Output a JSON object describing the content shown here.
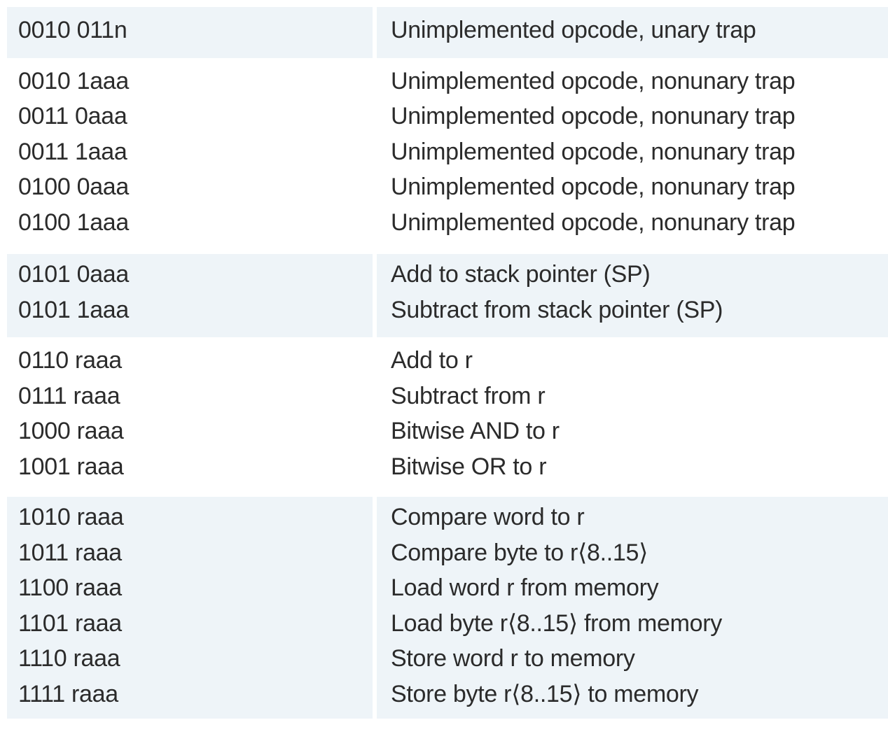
{
  "groups": [
    {
      "shaded": true,
      "rows": [
        {
          "code": "0010 011n",
          "desc": "Unimplemented opcode, unary trap"
        }
      ]
    },
    {
      "shaded": false,
      "rows": [
        {
          "code": "0010 1aaa",
          "desc": "Unimplemented opcode, nonunary trap"
        },
        {
          "code": "0011 0aaa",
          "desc": "Unimplemented opcode, nonunary trap"
        },
        {
          "code": "0011 1aaa",
          "desc": "Unimplemented opcode, nonunary trap"
        },
        {
          "code": "0100 0aaa",
          "desc": "Unimplemented opcode, nonunary trap"
        },
        {
          "code": "0100 1aaa",
          "desc": "Unimplemented opcode, nonunary trap"
        }
      ]
    },
    {
      "shaded": true,
      "rows": [
        {
          "code": "0101 0aaa",
          "desc": "Add to stack pointer (SP)"
        },
        {
          "code": "0101 1aaa",
          "desc": "Subtract from stack pointer (SP)"
        }
      ]
    },
    {
      "shaded": false,
      "rows": [
        {
          "code": "0110 raaa",
          "desc": "Add to r"
        },
        {
          "code": "0111 raaa",
          "desc": "Subtract from r"
        },
        {
          "code": "1000 raaa",
          "desc": "Bitwise AND to r"
        },
        {
          "code": "1001 raaa",
          "desc": "Bitwise OR to r"
        }
      ]
    },
    {
      "shaded": true,
      "rows": [
        {
          "code": "1010 raaa",
          "desc": "Compare word to r"
        },
        {
          "code": "1011 raaa",
          "desc": "Compare byte to r⟨8..15⟩"
        },
        {
          "code": "1100 raaa",
          "desc": "Load word r from memory"
        },
        {
          "code": "1101 raaa",
          "desc": "Load byte r⟨8..15⟩ from memory"
        },
        {
          "code": "1110 raaa",
          "desc": "Store word r to memory"
        },
        {
          "code": "1111 raaa",
          "desc": "Store byte r⟨8..15⟩ to memory"
        }
      ]
    }
  ]
}
